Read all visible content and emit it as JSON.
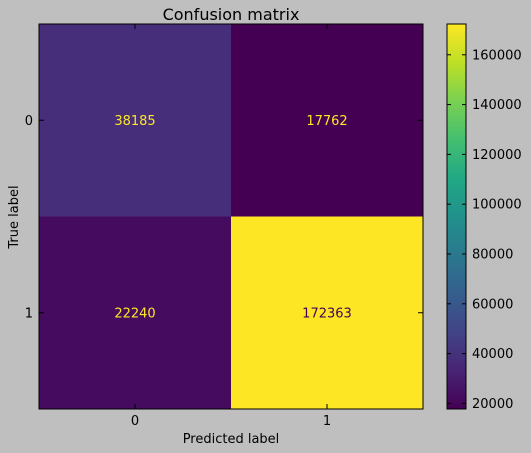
{
  "chart_data": {
    "type": "heatmap",
    "title": "Confusion matrix",
    "xlabel": "Predicted label",
    "ylabel": "True label",
    "x_ticks": [
      "0",
      "1"
    ],
    "y_ticks": [
      "0",
      "1"
    ],
    "matrix": [
      [
        38185,
        17762
      ],
      [
        22240,
        172363
      ]
    ],
    "colormap": "viridis",
    "colorbar": {
      "range": [
        17762,
        172363
      ],
      "ticks": [
        20000,
        40000,
        60000,
        80000,
        100000,
        120000,
        140000,
        160000
      ]
    },
    "cell_text_colors": {
      "on_dark": "#fde725",
      "on_light": "#440154"
    }
  }
}
